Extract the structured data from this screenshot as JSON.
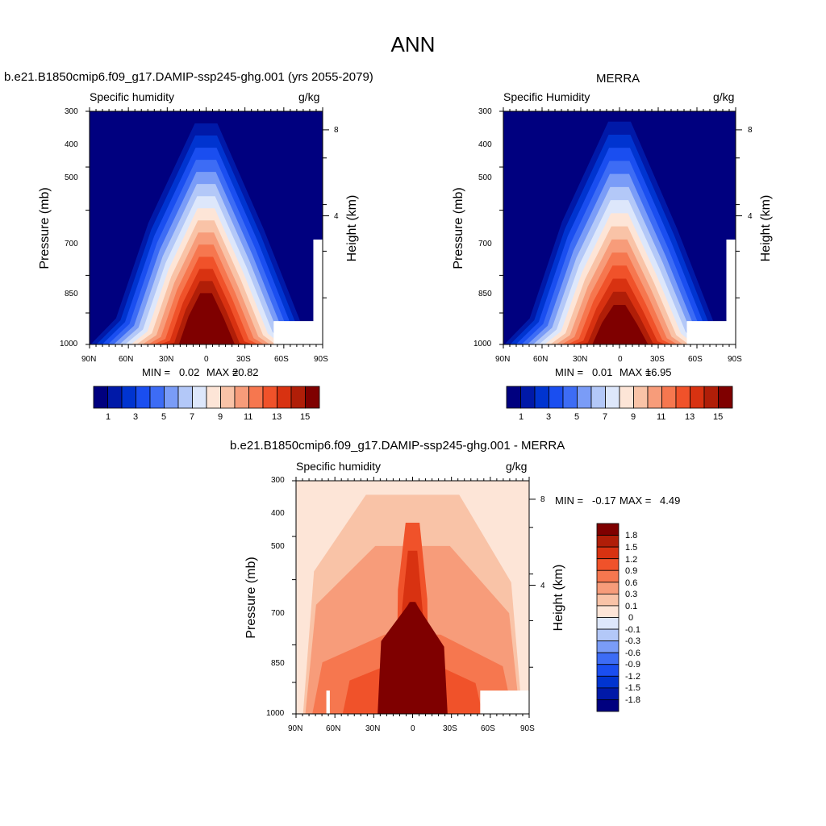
{
  "main_title": "ANN",
  "chart_data": [
    {
      "type": "heatmap",
      "title": "b.e21.B1850cmip6.f09_g17.DAMIP-ssp245-ghg.001 (yrs 2055-2079)",
      "left_subtitle": "Specific humidity",
      "right_subtitle": "g/kg",
      "ylabel": "Pressure (mb)",
      "y2label": "Height (km)",
      "xticks": [
        "90N",
        "60N",
        "30N",
        "0",
        "30S",
        "60S",
        "90S"
      ],
      "yticks": [
        "300",
        "400",
        "500",
        "700",
        "850",
        "1000"
      ],
      "y2ticks": [
        "8",
        "4"
      ],
      "xlim": [
        90,
        -90
      ],
      "ylim": [
        1000,
        300
      ],
      "min_label": "MIN =",
      "min_value": "0.02",
      "max_label": "MAX =",
      "max_value": "20.82",
      "levels": [
        1,
        2,
        3,
        4,
        5,
        6,
        7,
        8,
        9,
        10,
        11,
        12,
        13,
        14,
        15
      ],
      "colorbar_labels": [
        "1",
        "3",
        "5",
        "7",
        "9",
        "11",
        "13",
        "15"
      ],
      "colors": [
        "#00007f",
        "#0019a8",
        "#0034d0",
        "#1a4ef0",
        "#3d6cf5",
        "#7a9cf7",
        "#b3c8f8",
        "#dde7fb",
        "#fde5d7",
        "#f9c3a7",
        "#f79c7a",
        "#f6774f",
        "#f0522a",
        "#d83211",
        "#b01e08",
        "#7f0000"
      ]
    },
    {
      "type": "heatmap",
      "title": "MERRA",
      "left_subtitle": "Specific Humidity",
      "right_subtitle": "g/kg",
      "ylabel": "Pressure (mb)",
      "y2label": "Height (km)",
      "xticks": [
        "90N",
        "60N",
        "30N",
        "0",
        "30S",
        "60S",
        "90S"
      ],
      "yticks": [
        "300",
        "400",
        "500",
        "700",
        "850",
        "1000"
      ],
      "y2ticks": [
        "8",
        "4"
      ],
      "xlim": [
        90,
        -90
      ],
      "ylim": [
        1000,
        300
      ],
      "min_label": "MIN =",
      "min_value": "0.01",
      "max_label": "MAX =",
      "max_value": "16.95",
      "levels": [
        1,
        2,
        3,
        4,
        5,
        6,
        7,
        8,
        9,
        10,
        11,
        12,
        13,
        14,
        15
      ],
      "colorbar_labels": [
        "1",
        "3",
        "5",
        "7",
        "9",
        "11",
        "13",
        "15"
      ],
      "colors": [
        "#00007f",
        "#0019a8",
        "#0034d0",
        "#1a4ef0",
        "#3d6cf5",
        "#7a9cf7",
        "#b3c8f8",
        "#dde7fb",
        "#fde5d7",
        "#f9c3a7",
        "#f79c7a",
        "#f6774f",
        "#f0522a",
        "#d83211",
        "#b01e08",
        "#7f0000"
      ]
    },
    {
      "type": "heatmap",
      "title": "b.e21.B1850cmip6.f09_g17.DAMIP-ssp245-ghg.001 - MERRA",
      "left_subtitle": "Specific humidity",
      "right_subtitle": "g/kg",
      "ylabel": "Pressure (mb)",
      "y2label": "Height (km)",
      "xticks": [
        "90N",
        "60N",
        "30N",
        "0",
        "30S",
        "60S",
        "90S"
      ],
      "yticks": [
        "300",
        "400",
        "500",
        "700",
        "850",
        "1000"
      ],
      "y2ticks": [
        "8",
        "4"
      ],
      "xlim": [
        90,
        -90
      ],
      "ylim": [
        1000,
        300
      ],
      "min_label": "MIN =",
      "min_value": "-0.17",
      "max_label": "MAX =",
      "max_value": "4.49",
      "levels": [
        -1.8,
        -1.5,
        -1.2,
        -0.9,
        -0.6,
        -0.3,
        -0.1,
        0,
        0.1,
        0.3,
        0.6,
        0.9,
        1.2,
        1.5,
        1.8
      ],
      "colorbar_labels": [
        "1.8",
        "1.5",
        "1.2",
        "0.9",
        "0.6",
        "0.3",
        "0.1",
        "0",
        "-0.1",
        "-0.3",
        "-0.6",
        "-0.9",
        "-1.2",
        "-1.5",
        "-1.8"
      ],
      "colors": [
        "#00007f",
        "#0019a8",
        "#0034d0",
        "#1a4ef0",
        "#3d6cf5",
        "#7a9cf7",
        "#b3c8f8",
        "#dde7fb",
        "#fde5d7",
        "#f9c3a7",
        "#f79c7a",
        "#f6774f",
        "#f0522a",
        "#d83211",
        "#b01e08",
        "#7f0000"
      ]
    }
  ]
}
